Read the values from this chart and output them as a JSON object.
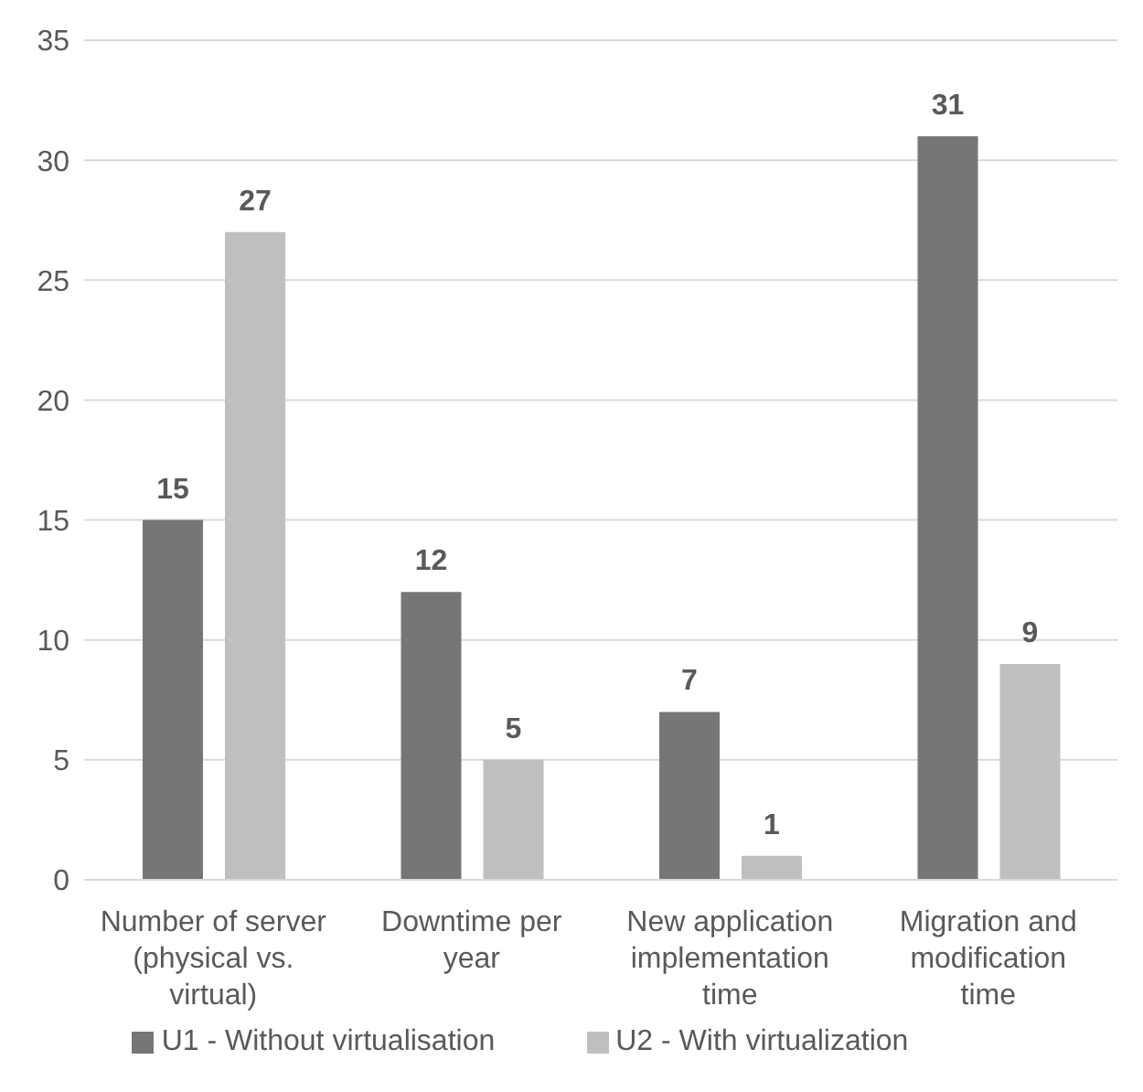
{
  "chart_data": {
    "type": "bar",
    "categories": [
      "Number of server (physical vs. virtual)",
      "Downtime per year",
      "New application implementation time",
      "Migration and modification time"
    ],
    "series": [
      {
        "name": "U1 - Without virtualisation",
        "color": "#767676",
        "values": [
          15,
          12,
          7,
          31
        ]
      },
      {
        "name": "U2 - With virtualization",
        "color": "#bfbfbf",
        "values": [
          27,
          5,
          1,
          9
        ]
      }
    ],
    "ylim": [
      0,
      35
    ],
    "yticks": [
      0,
      5,
      10,
      15,
      20,
      25,
      30,
      35
    ],
    "grid": "y",
    "legend": "bottom",
    "data_labels": true
  }
}
